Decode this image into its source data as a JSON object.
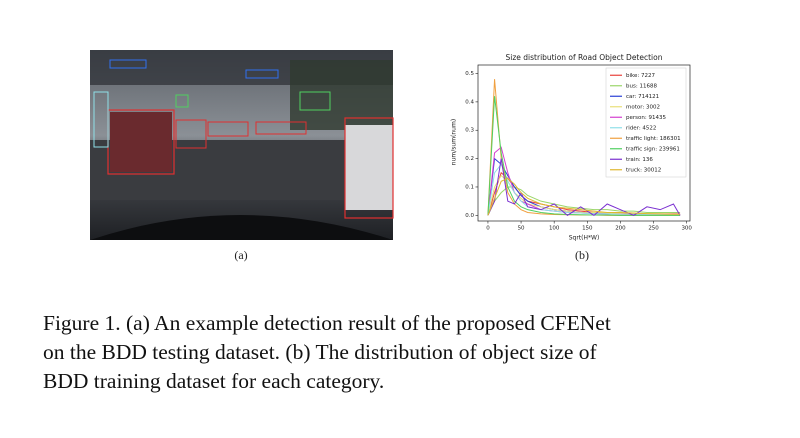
{
  "figure": {
    "panel_a_label": "(a)",
    "panel_b_label": "(b)",
    "caption_lines": [
      "Figure 1. (a) An example detection result of the proposed CFENet",
      "on the BDD testing dataset.  (b) The distribution of object size of",
      "BDD training dataset for each category."
    ]
  },
  "chart_data": {
    "type": "line",
    "title": "Size distribution of Road Object Detection",
    "xlabel": "Sqrt(H*W)",
    "ylabel": "num/sum(num)",
    "x": [
      0,
      10,
      20,
      30,
      40,
      50,
      60,
      80,
      100,
      120,
      140,
      160,
      180,
      200,
      220,
      240,
      260,
      280,
      290
    ],
    "xlim": [
      -15,
      305
    ],
    "ylim": [
      -0.02,
      0.53
    ],
    "xticks": [
      0,
      50,
      100,
      150,
      200,
      250,
      300
    ],
    "yticks": [
      {
        "value": 0,
        "label": "0.0"
      },
      0.1,
      0.2,
      0.3,
      0.4,
      0.5
    ],
    "legend": "upper right",
    "series": [
      {
        "name": "bike: 7227",
        "color": "#e8413c",
        "values": [
          0,
          0.08,
          0.15,
          0.13,
          0.1,
          0.07,
          0.05,
          0.04,
          0.03,
          0.02,
          0.015,
          0.01,
          0.01,
          0.01,
          0.005,
          0.005,
          0.005,
          0.005,
          0.005
        ]
      },
      {
        "name": "bus: 11688",
        "color": "#9bd66a",
        "values": [
          0,
          0.05,
          0.08,
          0.1,
          0.1,
          0.09,
          0.07,
          0.05,
          0.04,
          0.03,
          0.025,
          0.02,
          0.02,
          0.015,
          0.015,
          0.01,
          0.01,
          0.01,
          0.01
        ]
      },
      {
        "name": "car: 714121",
        "color": "#2a3fd6",
        "values": [
          0,
          0.2,
          0.18,
          0.14,
          0.1,
          0.07,
          0.05,
          0.03,
          0.02,
          0.015,
          0.01,
          0.008,
          0.006,
          0.005,
          0.004,
          0.003,
          0.003,
          0.002,
          0.002
        ]
      },
      {
        "name": "motor: 3002",
        "color": "#e8df7a",
        "values": [
          0,
          0.1,
          0.14,
          0.12,
          0.08,
          0.06,
          0.04,
          0.03,
          0.02,
          0.015,
          0.01,
          0.01,
          0.008,
          0.006,
          0.005,
          0.004,
          0.004,
          0.003,
          0.003
        ]
      },
      {
        "name": "person: 91435",
        "color": "#d43fd0",
        "values": [
          0,
          0.22,
          0.24,
          0.15,
          0.08,
          0.05,
          0.04,
          0.02,
          0.015,
          0.01,
          0.008,
          0.006,
          0.005,
          0.004,
          0.003,
          0.003,
          0.002,
          0.002,
          0.002
        ]
      },
      {
        "name": "rider: 4522",
        "color": "#8fe0e8",
        "values": [
          0,
          0.15,
          0.18,
          0.12,
          0.08,
          0.05,
          0.03,
          0.02,
          0.015,
          0.01,
          0.008,
          0.006,
          0.005,
          0.004,
          0.004,
          0.003,
          0.003,
          0.002,
          0.002
        ]
      },
      {
        "name": "traffic light: 186301",
        "color": "#f0a040",
        "values": [
          0,
          0.48,
          0.2,
          0.08,
          0.04,
          0.02,
          0.01,
          0.005,
          0.003,
          0.002,
          0.001,
          0.001,
          0,
          0,
          0,
          0,
          0,
          0,
          0
        ]
      },
      {
        "name": "traffic sign: 239961",
        "color": "#50d060",
        "values": [
          0,
          0.42,
          0.22,
          0.1,
          0.05,
          0.03,
          0.02,
          0.01,
          0.005,
          0.003,
          0.002,
          0.001,
          0.001,
          0,
          0,
          0,
          0,
          0,
          0
        ]
      },
      {
        "name": "train: 136",
        "color": "#7a2fd0",
        "values": [
          0,
          0.05,
          0.2,
          0.05,
          0.04,
          0.08,
          0.03,
          0.02,
          0.04,
          0,
          0.03,
          0,
          0.04,
          0.02,
          0,
          0.03,
          0.02,
          0.04,
          0
        ]
      },
      {
        "name": "truck: 30012",
        "color": "#e0b830",
        "values": [
          0,
          0.06,
          0.12,
          0.13,
          0.11,
          0.08,
          0.06,
          0.04,
          0.03,
          0.025,
          0.02,
          0.015,
          0.01,
          0.01,
          0.008,
          0.006,
          0.005,
          0.004,
          0.004
        ]
      }
    ]
  }
}
